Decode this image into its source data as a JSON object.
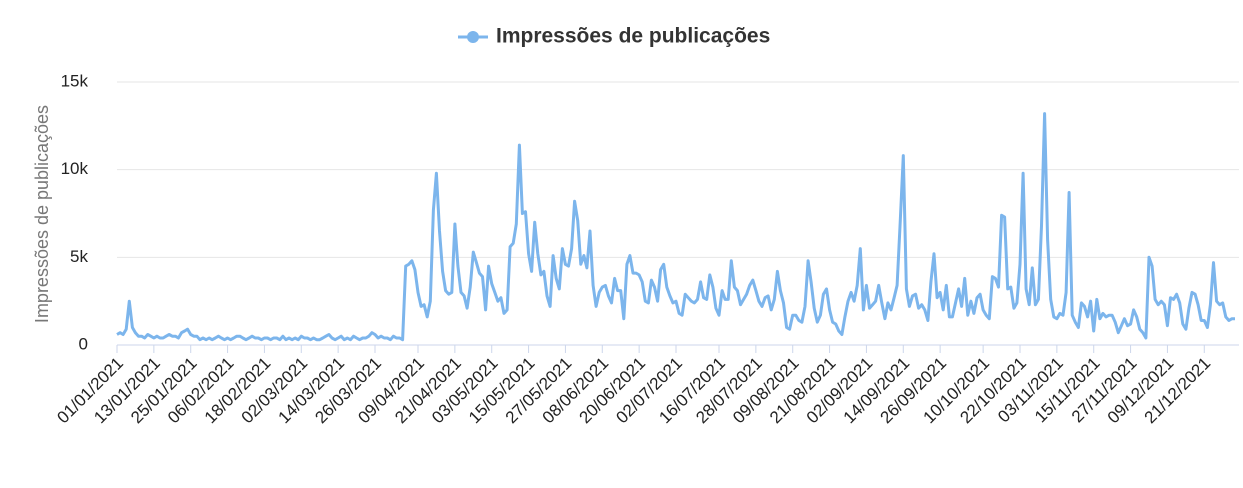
{
  "chart_data": {
    "type": "line",
    "y_axis_label": "Impressões de publicações",
    "legend": "top",
    "grid": true,
    "ylim": [
      0,
      15000
    ],
    "yticks": [
      0,
      {
        "value": 5000,
        "label": "5k"
      },
      {
        "value": 10000,
        "label": "10k"
      },
      {
        "value": 15000,
        "label": "15k"
      }
    ],
    "categories": [
      "01/01/2021",
      null,
      null,
      null,
      null,
      null,
      null,
      null,
      null,
      null,
      null,
      null,
      "13/01/2021",
      null,
      null,
      null,
      null,
      null,
      null,
      null,
      null,
      null,
      null,
      null,
      "25/01/2021",
      null,
      null,
      null,
      null,
      null,
      null,
      null,
      null,
      null,
      null,
      null,
      "06/02/2021",
      null,
      null,
      null,
      null,
      null,
      null,
      null,
      null,
      null,
      null,
      null,
      "18/02/2021",
      null,
      null,
      null,
      null,
      null,
      null,
      null,
      null,
      null,
      null,
      null,
      "02/03/2021",
      null,
      null,
      null,
      null,
      null,
      null,
      null,
      null,
      null,
      null,
      null,
      "14/03/2021",
      null,
      null,
      null,
      null,
      null,
      null,
      null,
      null,
      null,
      null,
      null,
      "26/03/2021",
      null,
      null,
      null,
      null,
      null,
      null,
      null,
      null,
      null,
      null,
      null,
      null,
      null,
      "09/04/2021",
      null,
      null,
      null,
      null,
      null,
      null,
      null,
      null,
      null,
      null,
      null,
      "21/04/2021",
      null,
      null,
      null,
      null,
      null,
      null,
      null,
      null,
      null,
      null,
      null,
      "03/05/2021",
      null,
      null,
      null,
      null,
      null,
      null,
      null,
      null,
      null,
      null,
      null,
      "15/05/2021",
      null,
      null,
      null,
      null,
      null,
      null,
      null,
      null,
      null,
      null,
      null,
      "27/05/2021",
      null,
      null,
      null,
      null,
      null,
      null,
      null,
      null,
      null,
      null,
      null,
      "08/06/2021",
      null,
      null,
      null,
      null,
      null,
      null,
      null,
      null,
      null,
      null,
      null,
      "20/06/2021",
      null,
      null,
      null,
      null,
      null,
      null,
      null,
      null,
      null,
      null,
      null,
      "02/07/2021",
      null,
      null,
      null,
      null,
      null,
      null,
      null,
      null,
      null,
      null,
      null,
      null,
      null,
      "16/07/2021",
      null,
      null,
      null,
      null,
      null,
      null,
      null,
      null,
      null,
      null,
      null,
      "28/07/2021",
      null,
      null,
      null,
      null,
      null,
      null,
      null,
      null,
      null,
      null,
      null,
      "09/08/2021",
      null,
      null,
      null,
      null,
      null,
      null,
      null,
      null,
      null,
      null,
      null,
      "21/08/2021",
      null,
      null,
      null,
      null,
      null,
      null,
      null,
      null,
      null,
      null,
      null,
      "02/09/2021",
      null,
      null,
      null,
      null,
      null,
      null,
      null,
      null,
      null,
      null,
      null,
      "14/09/2021",
      null,
      null,
      null,
      null,
      null,
      null,
      null,
      null,
      null,
      null,
      null,
      "26/09/2021",
      null,
      null,
      null,
      null,
      null,
      null,
      null,
      null,
      null,
      null,
      null,
      null,
      null,
      "10/10/2021",
      null,
      null,
      null,
      null,
      null,
      null,
      null,
      null,
      null,
      null,
      null,
      "22/10/2021",
      null,
      null,
      null,
      null,
      null,
      null,
      null,
      null,
      null,
      null,
      null,
      "03/11/2021",
      null,
      null,
      null,
      null,
      null,
      null,
      null,
      null,
      null,
      null,
      null,
      "15/11/2021",
      null,
      null,
      null,
      null,
      null,
      null,
      null,
      null,
      null,
      null,
      null,
      "27/11/2021",
      null,
      null,
      null,
      null,
      null,
      null,
      null,
      null,
      null,
      null,
      null,
      "09/12/2021",
      null,
      null,
      null,
      null,
      null,
      null,
      null,
      null,
      null,
      null,
      null,
      "21/12/2021",
      null,
      null,
      null,
      null,
      null,
      null,
      null,
      null,
      null,
      null
    ],
    "series": [
      {
        "name": "Impressões de publicações",
        "color": "#7cb5ec",
        "values": [
          600,
          700,
          600,
          900,
          2500,
          1000,
          700,
          500,
          500,
          400,
          600,
          500,
          400,
          500,
          400,
          400,
          500,
          600,
          500,
          500,
          400,
          700,
          800,
          900,
          600,
          500,
          500,
          300,
          400,
          300,
          400,
          300,
          400,
          500,
          400,
          300,
          400,
          300,
          400,
          500,
          500,
          400,
          300,
          400,
          500,
          400,
          400,
          300,
          400,
          400,
          300,
          400,
          400,
          300,
          500,
          300,
          400,
          300,
          400,
          300,
          500,
          400,
          400,
          300,
          400,
          300,
          300,
          400,
          500,
          600,
          400,
          300,
          400,
          500,
          300,
          400,
          300,
          500,
          400,
          300,
          400,
          400,
          500,
          700,
          600,
          400,
          500,
          400,
          400,
          300,
          500,
          400,
          400,
          300,
          4500,
          4600,
          4800,
          4300,
          3000,
          2200,
          2300,
          1600,
          2500,
          7700,
          9800,
          6500,
          4200,
          3100,
          2900,
          3000,
          6900,
          4500,
          3000,
          2800,
          2100,
          3300,
          5300,
          4700,
          4100,
          3900,
          2000,
          4500,
          3500,
          3000,
          2500,
          2700,
          1800,
          2000,
          5600,
          5800,
          6900,
          11400,
          7500,
          7600,
          5200,
          4200,
          7000,
          5200,
          4000,
          4200,
          2800,
          2200,
          5100,
          3800,
          3200,
          5500,
          4600,
          4500,
          5500,
          8200,
          7100,
          4600,
          5100,
          4400,
          6500,
          3400,
          2200,
          3000,
          3300,
          3400,
          2800,
          2400,
          3800,
          3100,
          3100,
          1500,
          4600,
          5100,
          4100,
          4100,
          4000,
          3600,
          2500,
          2400,
          3700,
          3300,
          2500,
          4300,
          4600,
          3300,
          2800,
          2400,
          2500,
          1800,
          1700,
          2900,
          2700,
          2500,
          2400,
          2600,
          3600,
          2700,
          2600,
          4000,
          3300,
          2100,
          1700,
          3100,
          2600,
          2600,
          4800,
          3300,
          3100,
          2300,
          2600,
          2900,
          3400,
          3700,
          3100,
          2500,
          2200,
          2700,
          2800,
          2000,
          2600,
          4200,
          3100,
          2400,
          1000,
          900,
          1700,
          1700,
          1400,
          1300,
          2200,
          4800,
          3600,
          2100,
          1300,
          1700,
          2900,
          3200,
          2000,
          1300,
          1200,
          800,
          600,
          1600,
          2500,
          3000,
          2500,
          3400,
          5500,
          2000,
          3400,
          2100,
          2300,
          2500,
          3400,
          2400,
          1500,
          2400,
          2000,
          2700,
          3400,
          7000,
          10800,
          3200,
          2200,
          2800,
          2900,
          2100,
          2300,
          2000,
          1400,
          3600,
          5200,
          2700,
          3000,
          2000,
          3400,
          1600,
          1600,
          2400,
          3200,
          2200,
          3800,
          1700,
          2500,
          1800,
          2700,
          2900,
          2000,
          1700,
          1500,
          3900,
          3800,
          3300,
          7400,
          7300,
          3200,
          3300,
          2100,
          2400,
          4600,
          9800,
          3200,
          2300,
          4400,
          2300,
          2600,
          6800,
          13200,
          6000,
          2600,
          1600,
          1500,
          1800,
          1700,
          3000,
          8700,
          1700,
          1300,
          1000,
          2400,
          2200,
          1600,
          2500,
          800,
          2600,
          1500,
          1800,
          1600,
          1700,
          1700,
          1300,
          700,
          1100,
          1500,
          1100,
          1200,
          2000,
          1600,
          900,
          700,
          400,
          5000,
          4500,
          2600,
          2300,
          2500,
          2300,
          1100,
          2700,
          2600,
          2900,
          2400,
          1200,
          900,
          2100,
          3000,
          2900,
          2300,
          1400,
          1400,
          1000,
          2300,
          4700,
          2500,
          2300,
          2400,
          1600,
          1400,
          1500,
          1500
        ]
      }
    ]
  }
}
